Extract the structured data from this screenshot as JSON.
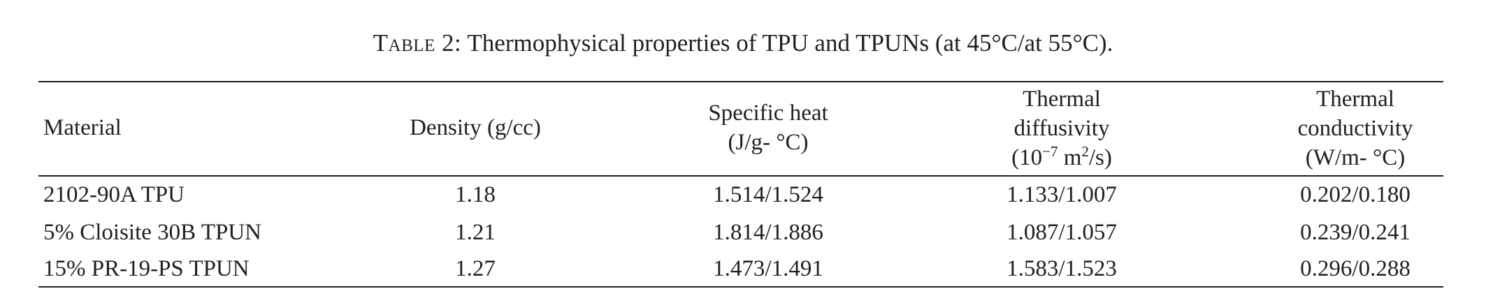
{
  "caption": {
    "label": "Table 2:",
    "text": "Thermophysical properties of TPU and TPUNs (at 45°C/at 55°C)."
  },
  "headers": {
    "material": "Material",
    "density": "Density (g/cc)",
    "specific_heat": [
      "Specific heat",
      "(J/g- °C)"
    ],
    "thermal_diffusivity": [
      "Thermal",
      "diffusivity",
      "(10",
      "−7",
      " m",
      "2",
      "/s)"
    ],
    "thermal_conductivity": [
      "Thermal",
      "conductivity",
      "(W/m- °C)"
    ]
  },
  "rows": [
    {
      "material": "2102-90A TPU",
      "density": "1.18",
      "specific_heat": "1.514/1.524",
      "thermal_diffusivity": "1.133/1.007",
      "thermal_conductivity": "0.202/0.180"
    },
    {
      "material": "5% Cloisite 30B TPUN",
      "density": "1.21",
      "specific_heat": "1.814/1.886",
      "thermal_diffusivity": "1.087/1.057",
      "thermal_conductivity": "0.239/0.241"
    },
    {
      "material": "15% PR-19-PS TPUN",
      "density": "1.27",
      "specific_heat": "1.473/1.491",
      "thermal_diffusivity": "1.583/1.523",
      "thermal_conductivity": "0.296/0.288"
    }
  ]
}
